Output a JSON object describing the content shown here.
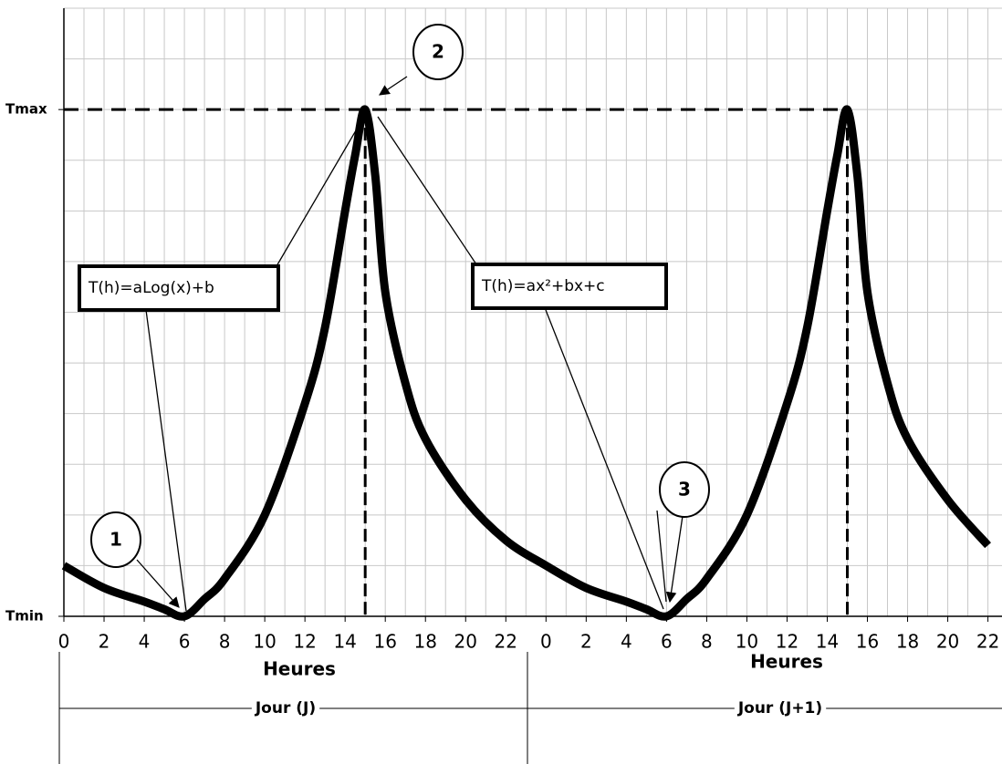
{
  "chart_data": {
    "type": "line",
    "x": [
      0,
      2,
      4,
      5,
      6,
      7,
      8,
      10,
      12,
      13,
      14,
      14.5,
      15,
      15.5,
      16,
      17,
      18,
      20,
      22,
      24,
      26,
      28,
      29,
      30,
      31,
      32,
      34,
      36,
      37,
      38,
      38.5,
      39,
      39.5,
      40,
      41,
      42,
      44,
      46
    ],
    "series": [
      {
        "color": "#000000",
        "values": [
          0.1,
          0.056,
          0.029,
          0.014,
          0,
          0.034,
          0.074,
          0.2,
          0.42,
          0.57,
          0.8,
          0.91,
          1,
          0.87,
          0.64,
          0.46,
          0.35,
          0.23,
          0.15,
          0.1,
          0.056,
          0.029,
          0.014,
          0,
          0.034,
          0.074,
          0.2,
          0.42,
          0.57,
          0.8,
          0.91,
          1,
          0.87,
          0.64,
          0.46,
          0.35,
          0.23,
          0.14
        ]
      }
    ],
    "xlim": [
      0,
      46.7
    ],
    "xticks": [
      0,
      2,
      4,
      6,
      8,
      10,
      12,
      14,
      16,
      18,
      20,
      22,
      {
        "value": 24,
        "label": "0"
      },
      {
        "value": 26,
        "label": "2"
      },
      {
        "value": 28,
        "label": "4"
      },
      {
        "value": 30,
        "label": "6"
      },
      {
        "value": 32,
        "label": "8"
      },
      {
        "value": 34,
        "label": "10"
      },
      {
        "value": 36,
        "label": "12"
      },
      {
        "value": 38,
        "label": "14"
      },
      {
        "value": 40,
        "label": "16"
      },
      {
        "value": 42,
        "label": "18"
      },
      {
        "value": 44,
        "label": "20"
      },
      {
        "value": 46,
        "label": "22"
      }
    ],
    "ylim": [
      0,
      1.2
    ],
    "yticks": [
      {
        "value": 0,
        "label": "Tmin"
      },
      {
        "value": 1,
        "label": "Tmax"
      }
    ],
    "grid": true,
    "x_labels": [
      "Heures",
      "Heures"
    ],
    "periods": [
      "Jour (J)",
      "Jour (J+1)"
    ],
    "markers": [
      "1",
      "2",
      "3"
    ],
    "formulas": [
      "T(h)=aLog(x)+b",
      "T(h)=ax²+bx+c"
    ]
  }
}
